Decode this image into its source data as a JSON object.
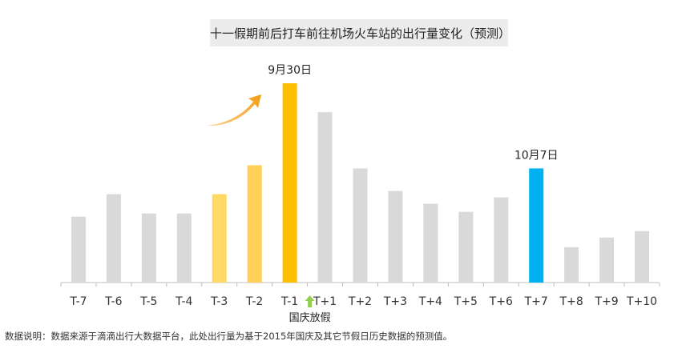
{
  "chart_data": {
    "type": "bar",
    "title": "十一假期前后打车前往机场火车站的出行量变化（预测）",
    "categories": [
      "T-7",
      "T-6",
      "T-5",
      "T-4",
      "T-3",
      "T-2",
      "T-1",
      "T+1",
      "T+2",
      "T+3",
      "T+4",
      "T+5",
      "T+6",
      "T+7",
      "T+8",
      "T+9",
      "T+10"
    ],
    "values": [
      41,
      55,
      43,
      43,
      55,
      73,
      124,
      106,
      71,
      57,
      49,
      44,
      53,
      71,
      22,
      28,
      32
    ],
    "ylim": [
      0,
      124
    ],
    "grid": false,
    "colors": [
      "#d9d9d9",
      "#d9d9d9",
      "#d9d9d9",
      "#d9d9d9",
      "#ffd966",
      "#ffd05a",
      "#ffbf00",
      "#d9d9d9",
      "#d9d9d9",
      "#d9d9d9",
      "#d9d9d9",
      "#d9d9d9",
      "#d9d9d9",
      "#00b0f0",
      "#d9d9d9",
      "#d9d9d9",
      "#d9d9d9"
    ],
    "annotations": [
      {
        "category": "T-1",
        "text": "9月30日"
      },
      {
        "category": "T+7",
        "text": "10月7日"
      }
    ],
    "holiday_marker": {
      "category": "T-1",
      "text": "国庆放假",
      "color": "#92d050"
    },
    "trend_arrow_color": "#f39c12"
  },
  "footnote": "数据说明：数据来源于滴滴出行大数据平台，此处出行量为基于2015年国庆及其它节假日历史数据的预测值。"
}
